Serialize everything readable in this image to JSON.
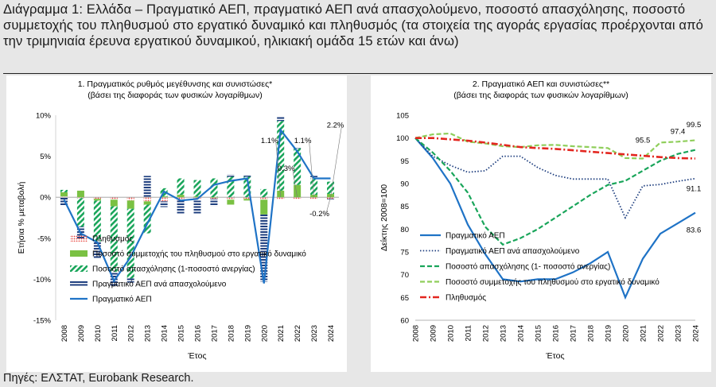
{
  "title": "Διάγραμμα 1: Ελλάδα – Πραγματικό ΑΕΠ, πραγματικό ΑΕΠ ανά απασχολούμενο, ποσοστό απασχόλησης, ποσοστό συμμετοχής του πληθυσμού στο εργατικό δυναμικό και πληθυσμός (τα στοιχεία της αγοράς εργασίας προέρχονται από την τριμηνιαία έρευνα εργατικού δυναμικού, ηλικιακή ομάδα 15 ετών και άνω)",
  "source": "Πηγές: ΕΛΣΤΑΤ, Eurobank Research.",
  "chart_data": [
    {
      "type": "bar",
      "title": "1. Πραγματικός ρυθμός μεγέθυνσης και συνιστώσες*",
      "subtitle": "(βάσει της διαφοράς των φυσικών λογαρίθμων)",
      "xlabel": "Έτος",
      "ylabel": "Ετήσια % μεταβολή",
      "ylim": [
        -15,
        10
      ],
      "yticks": [
        "-15%",
        "-10%",
        "-5%",
        "0%",
        "5%",
        "10%"
      ],
      "categories": [
        "2008",
        "2009",
        "2010",
        "2011",
        "2012",
        "2013",
        "2014",
        "2015",
        "2016",
        "2017",
        "2018",
        "2019",
        "2020",
        "2021",
        "2022",
        "2023",
        "2024"
      ],
      "series": [
        {
          "name": "Πληθυσμός",
          "kind": "stacked-bar",
          "color": "#e8423a",
          "values": [
            0.1,
            -0.1,
            -0.2,
            -0.3,
            -0.4,
            -0.5,
            -0.5,
            -0.4,
            -0.3,
            -0.2,
            -0.3,
            -0.2,
            -0.3,
            -0.3,
            -0.2,
            -0.2,
            -0.2
          ]
        },
        {
          "name": "Ποσοστό συμμετοχής του πληθυσμού στο εργατικό δυναμικό",
          "kind": "stacked-bar",
          "color": "#7ac143",
          "values": [
            0.5,
            0.8,
            -0.2,
            -0.8,
            -1.0,
            -0.4,
            0.1,
            0.3,
            0.1,
            0.0,
            -0.6,
            -0.2,
            -1.8,
            0.8,
            1.5,
            0.3,
            0.4
          ]
        },
        {
          "name": "Ποσοστό απασχόλησης (1-ποσοστό ανεργίας)",
          "kind": "stacked-bar",
          "color": "#19a55a",
          "values": [
            0.3,
            -3.5,
            -5.0,
            -8.0,
            -8.5,
            -3.5,
            1.0,
            2.0,
            2.0,
            2.3,
            2.5,
            2.5,
            1.0,
            8.5,
            4.5,
            2.0,
            1.5
          ]
        },
        {
          "name": "Πραγματικό ΑΕΠ ανά απασχολούμενο",
          "kind": "stacked-bar",
          "color": "#1f3f7f",
          "values": [
            -1.0,
            -1.5,
            -2.0,
            -1.7,
            -0.5,
            2.6,
            -0.7,
            -1.7,
            -1.8,
            -0.9,
            0.3,
            0.2,
            -8.2,
            0.5,
            0.0,
            0.3,
            -0.1
          ]
        },
        {
          "name": "Πραγματικό ΑΕΠ",
          "kind": "line",
          "color": "#1f73c6",
          "values": [
            -0.3,
            -4.4,
            -5.5,
            -10.2,
            -7.3,
            -3.2,
            0.7,
            -0.4,
            -0.2,
            1.5,
            2.0,
            2.3,
            -10.5,
            8.2,
            5.6,
            2.3,
            2.3
          ]
        }
      ],
      "annotations": [
        {
          "label": "1.1%",
          "category": "2021",
          "value": 6.6
        },
        {
          "label": "0.3%",
          "category": "2022",
          "value": 3.2
        },
        {
          "label": "1.1%",
          "category": "2023",
          "value": 6.6
        },
        {
          "label": "2.2%",
          "category": "2024",
          "value": 8.5
        },
        {
          "label": "-0.2%",
          "category": "2024",
          "value": -2.3
        }
      ],
      "legend": "bottom-left",
      "grid": false
    },
    {
      "type": "line",
      "title": "2. Πραγματικό ΑΕΠ και συνιστώσες**",
      "subtitle": "(βάσει της διαφοράς των φυσικών λογαρίθμων)",
      "xlabel": "Έτος",
      "ylabel": "Δείκτης 2008=100",
      "ylim": [
        60,
        105
      ],
      "yticks": [
        "60",
        "65",
        "70",
        "75",
        "80",
        "85",
        "90",
        "95",
        "100",
        "105"
      ],
      "x": [
        "2008",
        "2009",
        "2010",
        "2011",
        "2012",
        "2013",
        "2014",
        "2015",
        "2016",
        "2017",
        "2018",
        "2019",
        "2020",
        "2021",
        "2022",
        "2023",
        "2024"
      ],
      "series": [
        {
          "name": "Πραγματικό ΑΕΠ",
          "style": "solid",
          "color": "#1f73c6",
          "values": [
            100,
            95.6,
            90.0,
            81.0,
            74.5,
            69.0,
            68.5,
            69.0,
            69.0,
            70.5,
            72.5,
            75.0,
            65.0,
            73.5,
            79.0,
            81.3,
            83.6
          ]
        },
        {
          "name": "Πραγματικό ΑΕΠ ανά απασχολούμενο",
          "style": "dotted",
          "color": "#1f3f7f",
          "values": [
            100,
            96.0,
            94.0,
            92.5,
            92.8,
            96.0,
            96.0,
            93.5,
            91.8,
            91.0,
            91.0,
            91.0,
            82.5,
            89.5,
            89.8,
            90.5,
            91.1
          ]
        },
        {
          "name": "Ποσοστό απασχόλησης (1- ποσοστό ανεργίας)",
          "style": "dashed",
          "color": "#19a55a",
          "values": [
            100,
            96.8,
            92.8,
            88.0,
            80.5,
            76.6,
            78.0,
            80.0,
            82.5,
            85.0,
            87.5,
            89.7,
            90.6,
            92.8,
            95.0,
            96.5,
            97.4
          ]
        },
        {
          "name": "Ποσοστό συμμετοχής του πληθυσμού στο εργατικό δυναμικό",
          "style": "dashed",
          "color": "#8fce5a",
          "values": [
            100,
            100.8,
            101.0,
            99.2,
            98.8,
            98.2,
            98.0,
            98.4,
            98.5,
            98.2,
            98.0,
            97.8,
            95.6,
            95.5,
            99.0,
            99.2,
            99.5
          ]
        },
        {
          "name": "Πληθυσμός",
          "style": "dash-dot",
          "color": "#e3261f",
          "values": [
            100,
            100.0,
            99.7,
            99.4,
            99.0,
            98.5,
            98.0,
            97.8,
            97.6,
            97.3,
            97.0,
            96.7,
            96.4,
            96.1,
            95.8,
            95.6,
            95.5
          ]
        }
      ],
      "annotations": [
        {
          "label": "99.5",
          "category": "2024",
          "value": 102.4
        },
        {
          "label": "97.4",
          "category": "2023",
          "value": 100.9
        },
        {
          "label": "95.5",
          "category": "2021",
          "value": 99.0
        },
        {
          "label": "91.1",
          "category": "2024",
          "value": 88.3
        },
        {
          "label": "83.6",
          "category": "2024",
          "value": 79.3
        }
      ],
      "legend": "bottom-left",
      "grid": false
    }
  ]
}
